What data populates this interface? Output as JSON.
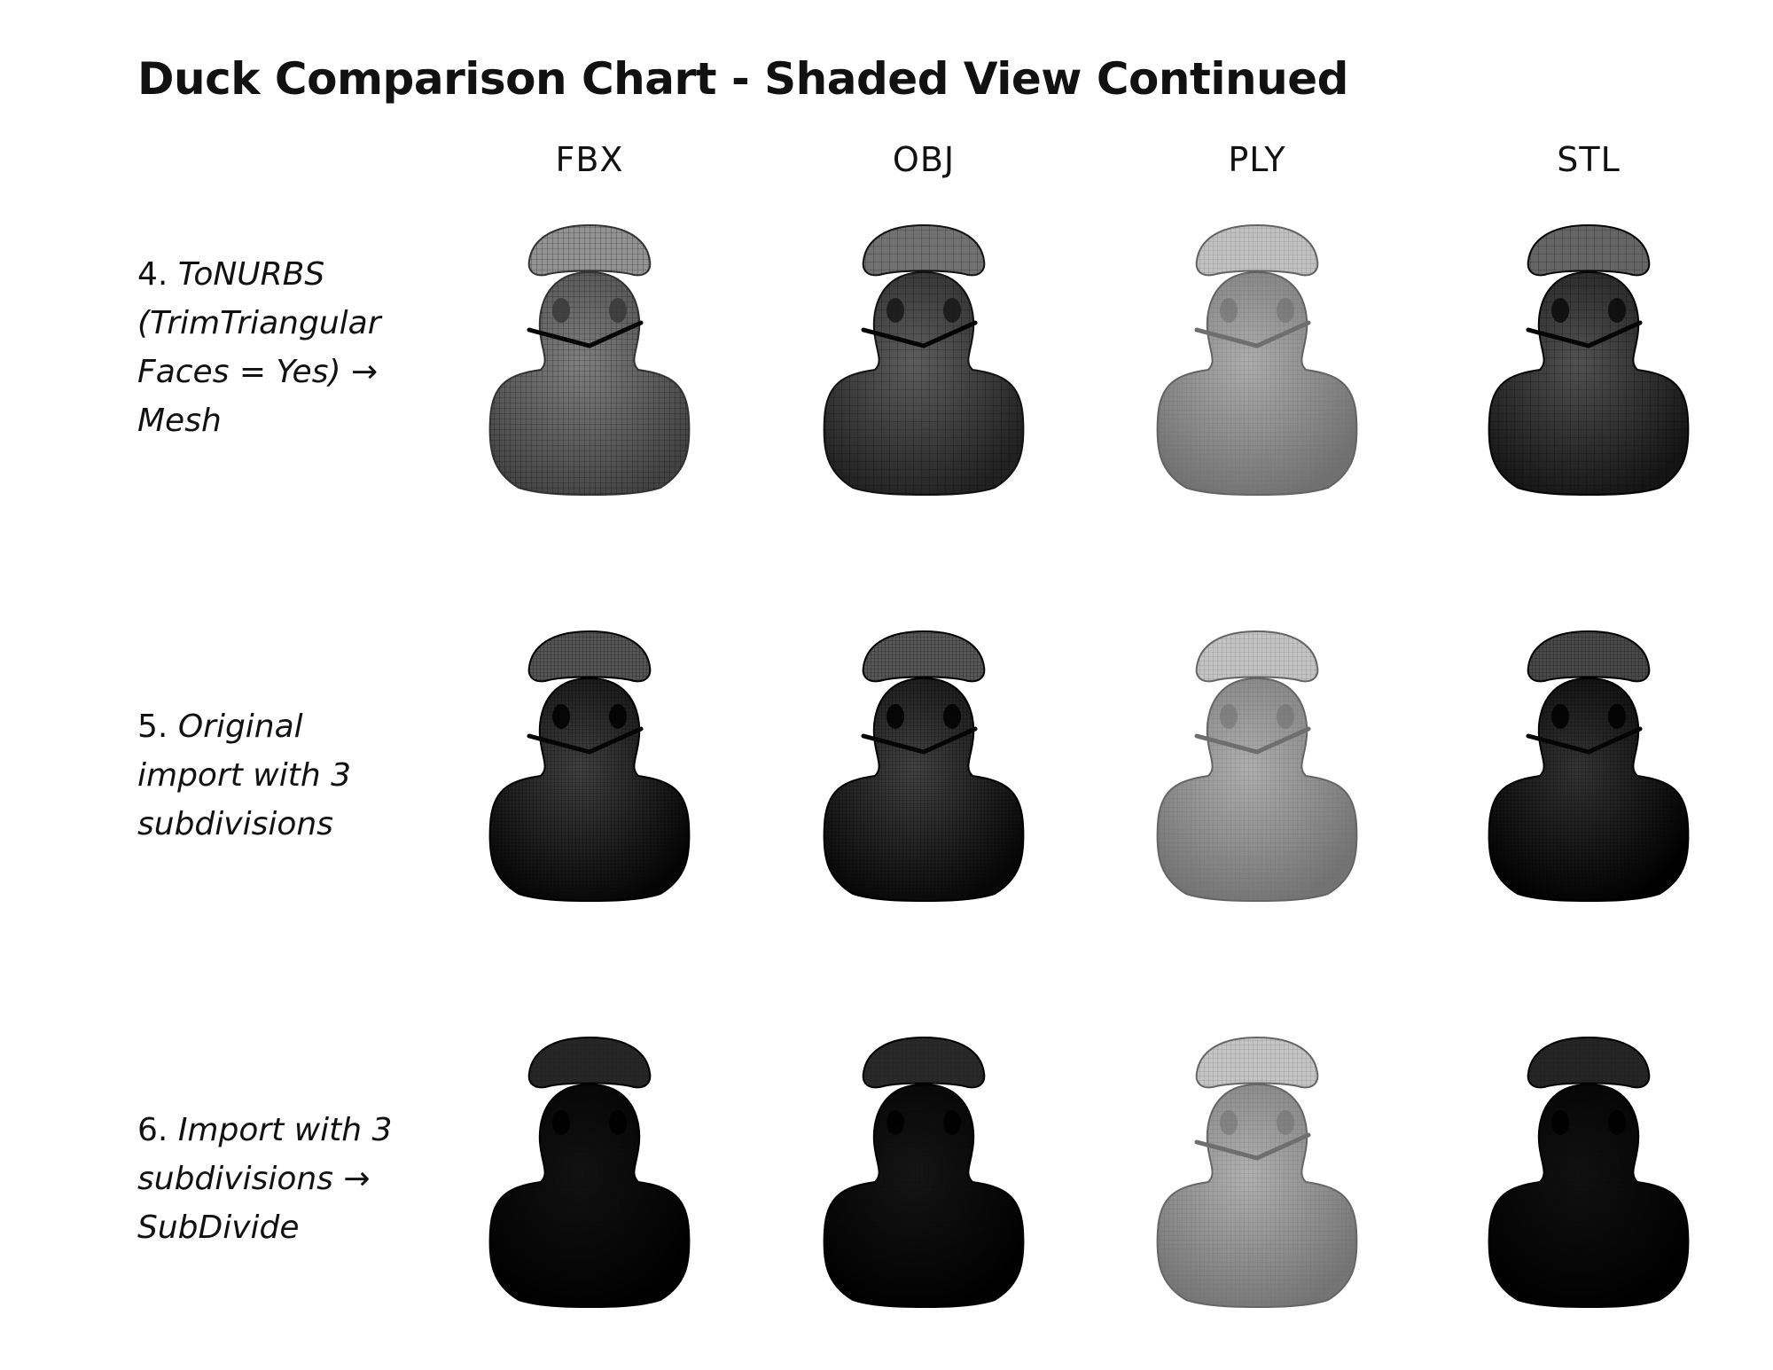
{
  "title": "Duck Comparison Chart - Shaded View Continued",
  "columns": [
    "FBX",
    "OBJ",
    "PLY",
    "STL"
  ],
  "rows": [
    {
      "number": "4.",
      "description": "ToNURBS\n(TrimTriangular\nFaces = Yes) →\nMesh"
    },
    {
      "number": "5.",
      "description": "Original\nimport with 3\nsubdivisions"
    },
    {
      "number": "6.",
      "description": "Import with 3\nsubdivisions →\nSubDivide"
    }
  ],
  "colors": {
    "row4": {
      "fbx": "#5c5c5c",
      "obj": "#3a3a3a",
      "ply": "#8a8a8a",
      "stl": "#2e2e2e"
    },
    "row5": {
      "fbx": "#1e1e1e",
      "obj": "#202020",
      "ply": "#8c8c8c",
      "stl": "#121212"
    },
    "row6": {
      "fbx": "#080808",
      "obj": "#0b0b0b",
      "ply": "#8e8e8e",
      "stl": "#070707"
    }
  }
}
